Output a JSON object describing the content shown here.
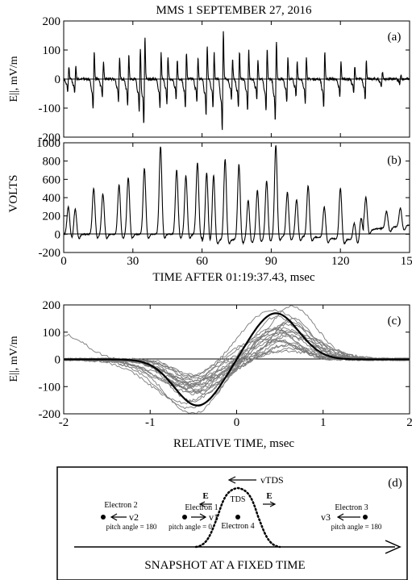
{
  "figure_title": "MMS 1   SEPTEMBER 27, 2016",
  "chart_data": [
    {
      "id": "a",
      "type": "line",
      "panel_label": "(a)",
      "ylabel": "E||, mV/m",
      "xlim": [
        0,
        150
      ],
      "ylim": [
        -200,
        200
      ],
      "yticks": [
        -200,
        -100,
        0,
        100,
        200
      ],
      "xticks": [
        0,
        30,
        60,
        90,
        120,
        150
      ],
      "series_color": "#000000",
      "events": [
        {
          "t": 2,
          "amp": 50
        },
        {
          "t": 5,
          "amp": 55
        },
        {
          "t": 13,
          "amp": 115
        },
        {
          "t": 17,
          "amp": 70
        },
        {
          "t": 24,
          "amp": 85
        },
        {
          "t": 28,
          "amp": 100
        },
        {
          "t": 33,
          "amp": 130
        },
        {
          "t": 35,
          "amp": 175
        },
        {
          "t": 42,
          "amp": 110
        },
        {
          "t": 45,
          "amp": 95
        },
        {
          "t": 49,
          "amp": 80
        },
        {
          "t": 53,
          "amp": 110
        },
        {
          "t": 58,
          "amp": 90
        },
        {
          "t": 62,
          "amp": 140
        },
        {
          "t": 65,
          "amp": 110
        },
        {
          "t": 69,
          "amp": 200
        },
        {
          "t": 73,
          "amp": 80
        },
        {
          "t": 76,
          "amp": 110
        },
        {
          "t": 80,
          "amp": 120
        },
        {
          "t": 84,
          "amp": 80
        },
        {
          "t": 88,
          "amp": 125
        },
        {
          "t": 92,
          "amp": 160
        },
        {
          "t": 97,
          "amp": 90
        },
        {
          "t": 101,
          "amp": 70
        },
        {
          "t": 105,
          "amp": 95
        },
        {
          "t": 113,
          "amp": 110
        },
        {
          "t": 120,
          "amp": 70
        },
        {
          "t": 126,
          "amp": 55
        },
        {
          "t": 131,
          "amp": 75
        },
        {
          "t": 138,
          "amp": 30
        },
        {
          "t": 146,
          "amp": 20
        }
      ]
    },
    {
      "id": "b",
      "type": "line",
      "panel_label": "(b)",
      "ylabel": "VOLTS",
      "xlabel": "TIME AFTER 01:19:37.43, msec",
      "xlim": [
        0,
        150
      ],
      "ylim": [
        -200,
        1000
      ],
      "yticks": [
        -200,
        0,
        200,
        400,
        600,
        800,
        1000
      ],
      "xticks": [
        0,
        30,
        60,
        90,
        120,
        150
      ],
      "series_color": "#000000",
      "peaks": [
        {
          "t": 2,
          "v": 300
        },
        {
          "t": 5,
          "v": 280
        },
        {
          "t": 13,
          "v": 500
        },
        {
          "t": 17,
          "v": 440
        },
        {
          "t": 24,
          "v": 540
        },
        {
          "t": 28,
          "v": 620
        },
        {
          "t": 35,
          "v": 720
        },
        {
          "t": 42,
          "v": 960
        },
        {
          "t": 49,
          "v": 700
        },
        {
          "t": 53,
          "v": 640
        },
        {
          "t": 58,
          "v": 780
        },
        {
          "t": 62,
          "v": 720
        },
        {
          "t": 65,
          "v": 700
        },
        {
          "t": 70,
          "v": 880
        },
        {
          "t": 76,
          "v": 820
        },
        {
          "t": 80,
          "v": 420
        },
        {
          "t": 84,
          "v": 520
        },
        {
          "t": 88,
          "v": 620
        },
        {
          "t": 92,
          "v": 1000
        },
        {
          "t": 97,
          "v": 480
        },
        {
          "t": 101,
          "v": 400
        },
        {
          "t": 106,
          "v": 560
        },
        {
          "t": 113,
          "v": 340
        },
        {
          "t": 120,
          "v": 560
        },
        {
          "t": 126,
          "v": 180
        },
        {
          "t": 129,
          "v": 240
        },
        {
          "t": 131,
          "v": 400
        },
        {
          "t": 140,
          "v": 180
        },
        {
          "t": 146,
          "v": 200
        }
      ]
    },
    {
      "id": "c",
      "type": "line",
      "panel_label": "(c)",
      "ylabel": "E||, mV/m",
      "xlabel": "RELATIVE TIME, msec",
      "xlim": [
        -2,
        2
      ],
      "ylim": [
        -200,
        200
      ],
      "yticks": [
        -200,
        -100,
        0,
        100,
        200
      ],
      "xticks": [
        -2,
        -1,
        0,
        1,
        2
      ],
      "xtick_labels": [
        "-2",
        "-1",
        "0",
        "1",
        "2"
      ],
      "individual_color": "#7a7a7a",
      "average_color": "#000000",
      "individual_pairs": [
        [
          80,
          30
        ],
        [
          100,
          40
        ],
        [
          60,
          50
        ],
        [
          120,
          55
        ],
        [
          90,
          65
        ],
        [
          70,
          70
        ],
        [
          110,
          75
        ],
        [
          150,
          85
        ],
        [
          85,
          90
        ],
        [
          130,
          95
        ],
        [
          95,
          100
        ],
        [
          180,
          105
        ],
        [
          65,
          110
        ],
        [
          140,
          115
        ],
        [
          100,
          120
        ],
        [
          160,
          130
        ],
        [
          90,
          140
        ],
        [
          120,
          150
        ],
        [
          200,
          160
        ],
        [
          75,
          185
        ],
        [
          110,
          195
        ]
      ],
      "average": {
        "min": -170,
        "min_t": -0.45,
        "max": 170,
        "max_t": 0.45
      }
    }
  ],
  "diagram": {
    "panel_label": "(d)",
    "vtds_label": "vTDS",
    "tds_label": "TDS",
    "e_left": "E",
    "e_right": "E",
    "electron4": "Electron 4",
    "electron1": {
      "name": "Electron 1",
      "v": "v1",
      "pitch": "pitch angle = 0"
    },
    "electron2": {
      "name": "Electron 2",
      "v": "v2",
      "pitch": "pitch angle = 180"
    },
    "electron3": {
      "name": "Electron 3",
      "v": "v3",
      "pitch": "pitch angle = 180"
    },
    "snapshot": "SNAPSHOT AT A FIXED TIME"
  }
}
